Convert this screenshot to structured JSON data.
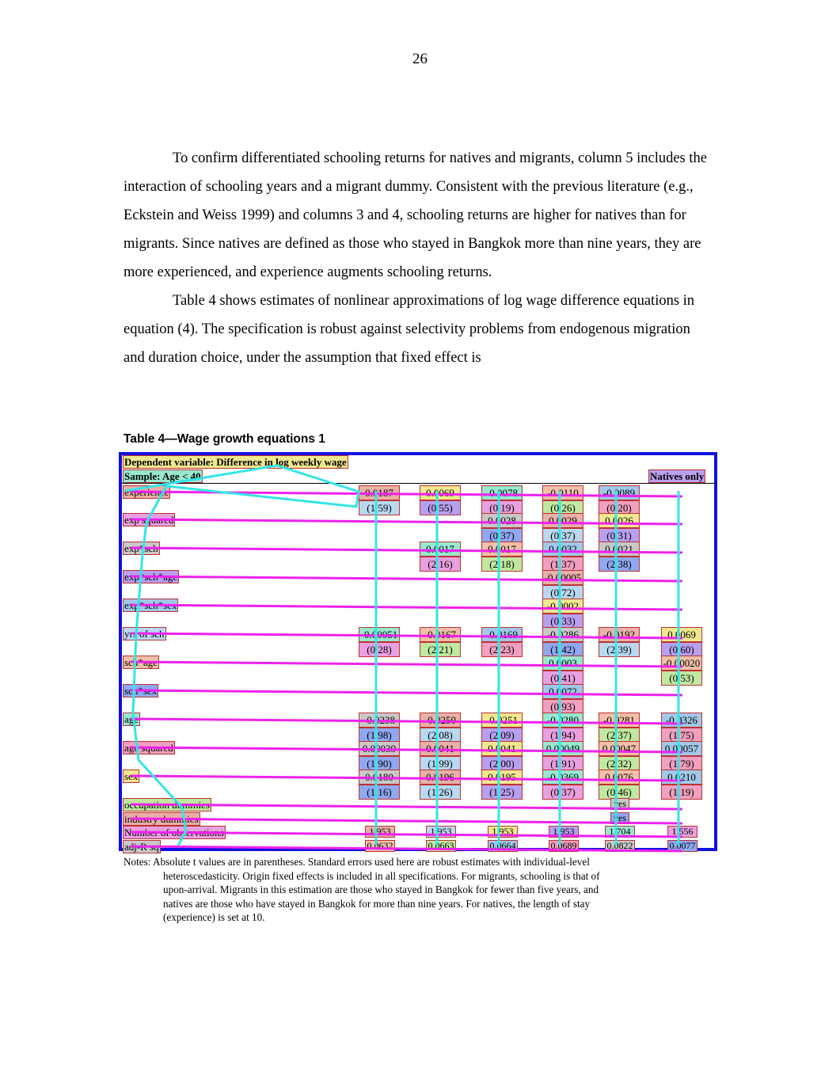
{
  "page_number": "26",
  "paragraphs": [
    "To confirm differentiated schooling returns for natives and migrants, column 5 includes the interaction of schooling years and a migrant dummy.  Consistent with the previous literature (e.g., Eckstein and Weiss 1999) and columns 3 and 4, schooling returns are higher for natives than for migrants.  Since natives are defined as those who stayed in Bangkok more than nine years, they are more experienced, and experience augments schooling returns.",
    "Table 4 shows estimates of nonlinear approximations of log wage difference equations in equation (4).  The specification is robust against selectivity problems from endogenous migration and duration choice, under the assumption that fixed effect is"
  ],
  "table": {
    "title": "Table 4—Wage growth equations 1",
    "dependent": "Dependent variable: Difference in log weekly wage",
    "sample": "Sample: Age < 40",
    "natives_only": "Natives only",
    "rows": [
      {
        "label": "experience",
        "cells": [
          "0.0187|(1.59)",
          "0.0069|(0.55)",
          "-0.0078|(0.19)",
          "-0.0110|(0.26)",
          "-0.0089|(0.20)",
          ""
        ]
      },
      {
        "label": "exp squared",
        "cells": [
          "",
          "",
          "0.0028|(0.37)",
          "0.0029|(0.37)",
          "0.0026|(0.31)",
          ""
        ]
      },
      {
        "label": "exp*sch",
        "cells": [
          "",
          "0.0017|(2.16)",
          "0.0017|(2.18)",
          "0.0032|(1.37)",
          "0.0021|(2.38)",
          ""
        ]
      },
      {
        "label": "exp*sch*age",
        "cells": [
          "",
          "",
          "",
          "-0.00005|(0.72)",
          "",
          ""
        ]
      },
      {
        "label": "exp*sch*sex",
        "cells": [
          "",
          "",
          "",
          "-0.0002|(0.33)",
          "",
          ""
        ]
      },
      {
        "label": "yrs of sch",
        "cells": [
          "-0.00051|(0.28)",
          "-0.0167|(2.21)",
          "-0.0169|(2.23)",
          "-0.0286|(1.42)",
          "-0.0192|(2.39)",
          "0.0069|(0.60)"
        ]
      },
      {
        "label": "sch*age",
        "cells": [
          "",
          "",
          "",
          "0.0003|(0.41)",
          "",
          "-0.00020|(0.53)"
        ]
      },
      {
        "label": "sch*sex",
        "cells": [
          "",
          "",
          "",
          "0.0072|(0.93)",
          "",
          ""
        ]
      },
      {
        "label": "age",
        "cells": [
          "-0.0238|(1.98)",
          "-0.0250|(2.08)",
          "-0.0251|(2.09)",
          "-0.0280|(1.94)",
          "-0.0281|(2.37)",
          "-0.0326|(1.75)"
        ]
      },
      {
        "label": "age squared",
        "cells": [
          "0.00039|(1.90)",
          "0.0041|(1.99)",
          "0.0041|(2.00)",
          "0.00049|(1.91)",
          "0.00047|(2.32)",
          "0.00057|(1.79)"
        ]
      },
      {
        "label": "sex",
        "cells": [
          "0.0180|(1.16)",
          "0.0196|(1.26)",
          "0.0195|(1.25)",
          "-0.0369|(0.37)",
          "0.0076|(0.46)",
          "0.0210|(1.19)"
        ]
      },
      {
        "label": "occupation dummies",
        "cells": [
          "",
          "",
          "",
          "",
          "yes",
          ""
        ]
      },
      {
        "label": "industry dummies",
        "cells": [
          "",
          "",
          "",
          "",
          "yes",
          ""
        ]
      },
      {
        "label": "Number of observations",
        "cells": [
          "1,953",
          "1,953",
          "1,953",
          "1,953",
          "1,704",
          "1,556"
        ]
      },
      {
        "label": "adj-R sq",
        "cells": [
          "0.0632",
          "0.0663",
          "0.0664",
          "0.0689",
          "0.0822",
          "0.0077"
        ]
      }
    ],
    "notes": [
      "Notes:  Absolute t values are in parentheses.  Standard errors used here are robust estimates with individual-level",
      "heteroscedasticity.  Origin fixed effects is included in all specifications.  For migrants, schooling is that of",
      "upon-arrival.  Migrants in this estimation are those who stayed in Bangkok for fewer than five years, and",
      "natives are those who have stayed in Bangkok for more than nine years.  For natives, the length of stay",
      "(experience) is set at 10."
    ]
  },
  "colors": {
    "frame": "#1010e0",
    "overlay_row": "#ee22ee",
    "overlay_col": "#33e5e5",
    "cell_palette": [
      "#e8b0a8",
      "#b8d8f0",
      "#f0e890",
      "#b8a0f0",
      "#98e8d0",
      "#e8a0e0",
      "#f0c0a8",
      "#c0e8a0",
      "#a0c8e8",
      "#f0a0c0",
      "#c8c8c8",
      "#90a8f0"
    ]
  }
}
